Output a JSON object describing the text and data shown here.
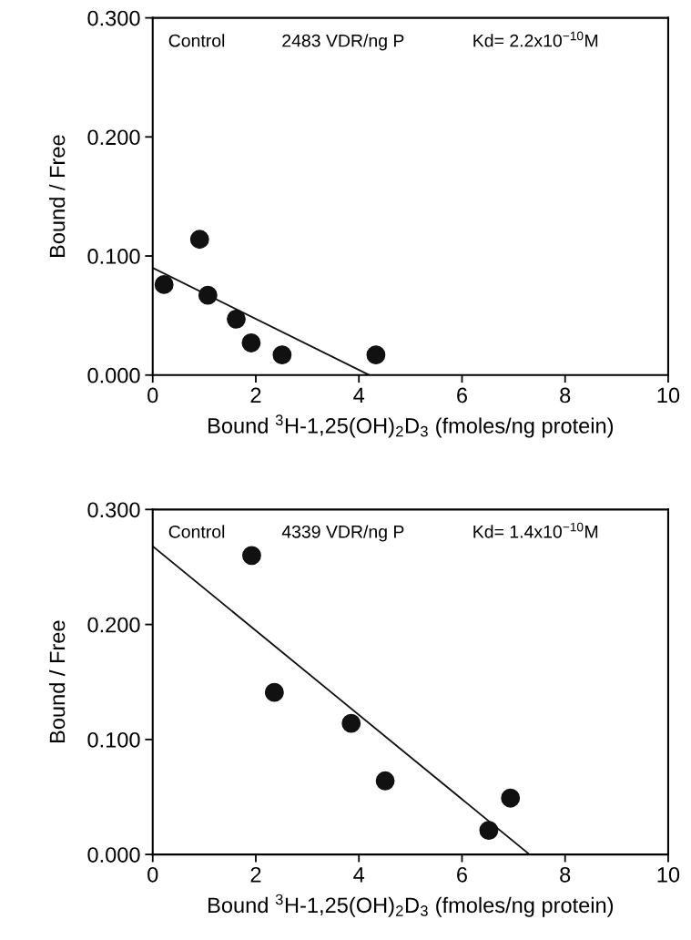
{
  "chart_data": [
    {
      "type": "scatter",
      "xlabel": "Bound $^{3}$H-1,25(OH)$_{2}$D$_{3}$ (fmoles/ng protein)",
      "ylabel": "Bound / Free",
      "annotations": [
        "Control",
        "2483 VDR/ng P",
        "Kd= 2.2x10$^{−10}$M"
      ],
      "xlim": [
        0,
        10
      ],
      "xticks": [
        0,
        2,
        4,
        6,
        8,
        10
      ],
      "ylim": [
        0,
        0.3
      ],
      "yticks": [
        {
          "value": 0,
          "label": "0.000"
        },
        {
          "value": 0.1,
          "label": "0.100"
        },
        {
          "value": 0.2,
          "label": "0.200"
        },
        {
          "value": 0.3,
          "label": "0.300"
        }
      ],
      "grid": false,
      "series": [
        {
          "marker": "circle",
          "color": "#111111",
          "x": [
            0.22,
            0.91,
            1.07,
            1.62,
            1.91,
            2.51,
            4.33
          ],
          "values": [
            0.076,
            0.114,
            0.067,
            0.047,
            0.027,
            0.017,
            0.017
          ]
        },
        {
          "type": "line",
          "color": "#111111",
          "x": [
            0,
            4.2
          ],
          "values": [
            0.09,
            0
          ]
        }
      ]
    },
    {
      "type": "scatter",
      "xlabel": "Bound $^{3}$H-1,25(OH)$_{2}$D$_{3}$ (fmoles/ng protein)",
      "ylabel": "Bound / Free",
      "annotations": [
        "Control",
        "4339 VDR/ng P",
        "Kd= 1.4x10$^{−10}$M"
      ],
      "xlim": [
        0,
        10
      ],
      "xticks": [
        0,
        2,
        4,
        6,
        8,
        10
      ],
      "ylim": [
        0,
        0.3
      ],
      "yticks": [
        {
          "value": 0,
          "label": "0.000"
        },
        {
          "value": 0.1,
          "label": "0.100"
        },
        {
          "value": 0.2,
          "label": "0.200"
        },
        {
          "value": 0.3,
          "label": "0.300"
        }
      ],
      "grid": false,
      "series": [
        {
          "marker": "circle",
          "color": "#111111",
          "x": [
            1.92,
            2.36,
            3.85,
            4.51,
            6.52,
            6.94
          ],
          "values": [
            0.26,
            0.141,
            0.114,
            0.064,
            0.021,
            0.049
          ]
        },
        {
          "type": "line",
          "color": "#111111",
          "x": [
            0,
            7.31
          ],
          "values": [
            0.268,
            0
          ]
        }
      ]
    }
  ]
}
